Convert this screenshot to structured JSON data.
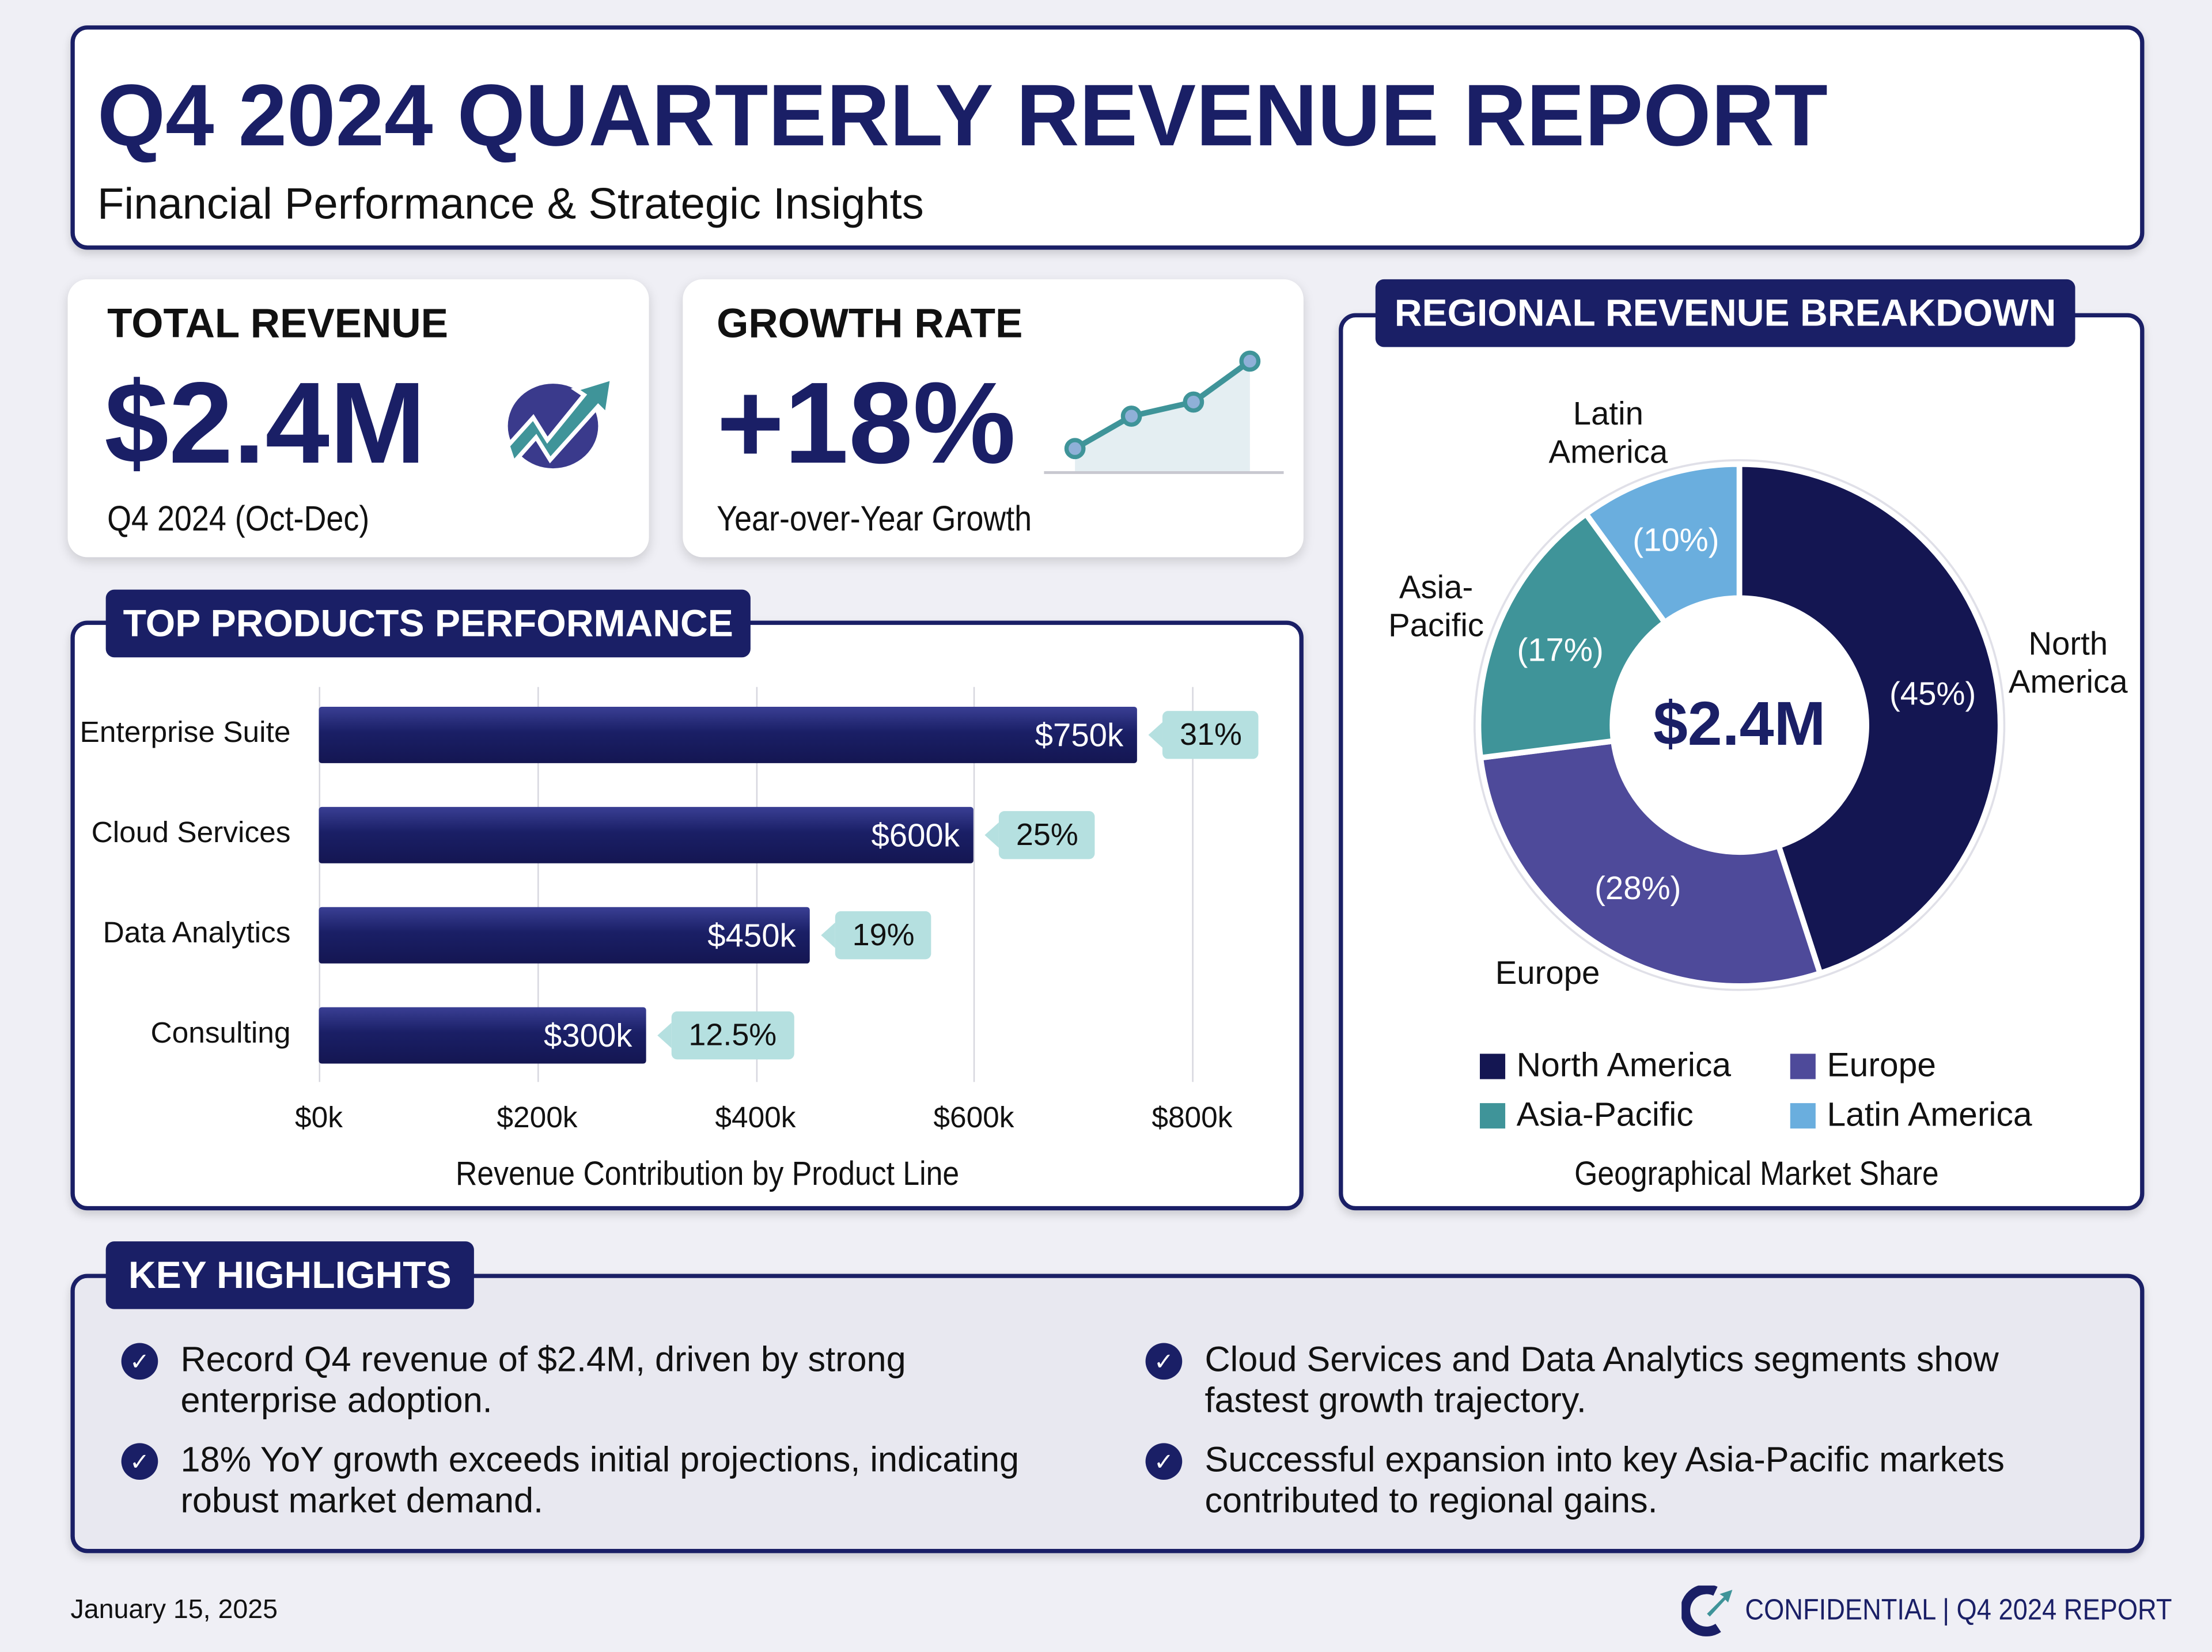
{
  "header": {
    "title": "Q4 2024 QUARTERLY REVENUE REPORT",
    "subtitle": "Financial Performance & Strategic Insights"
  },
  "kpis": [
    {
      "label": "TOTAL REVENUE",
      "value": "$2.4M",
      "caption": "Q4 2024 (Oct-Dec)",
      "icon": "growth-arrow-icon"
    },
    {
      "label": "GROWTH RATE",
      "value": "+18%",
      "caption": "Year-over-Year Growth",
      "icon": "sparkline-chart-icon"
    }
  ],
  "colors": {
    "navy": "#1a1f66",
    "north_america": "#141652",
    "europe": "#4e4a9a",
    "asia_pacific": "#3f9499",
    "latin_america": "#6aaede",
    "pct_tag": "#b5e0e0"
  },
  "chart_data": [
    {
      "type": "bar",
      "title": "TOP PRODUCTS PERFORMANCE",
      "orientation": "horizontal",
      "categories": [
        "Enterprise Suite",
        "Cloud Services",
        "Data Analytics",
        "Consulting"
      ],
      "values": [
        750,
        600,
        450,
        300
      ],
      "value_labels": [
        "$750k",
        "$600k",
        "$450k",
        "$300k"
      ],
      "share_labels": [
        "31%",
        "25%",
        "19%",
        "12.5%"
      ],
      "xlabel": "Revenue Contribution by Product Line",
      "xlim": [
        0,
        800
      ],
      "xticks": [
        "$0k",
        "$200k",
        "$400k",
        "$600k",
        "$800k"
      ],
      "grid": true
    },
    {
      "type": "pie",
      "donut": true,
      "title": "REGIONAL REVENUE BREAKDOWN",
      "center_label": "$2.4M",
      "categories": [
        "North America",
        "Europe",
        "Asia-Pacific",
        "Latin America"
      ],
      "values": [
        45,
        28,
        17,
        10
      ],
      "slice_labels": [
        "(45%)",
        "(28%)",
        "(17%)",
        "(10%)"
      ],
      "outer_labels": [
        "North\nAmerica",
        "Europe",
        "Asia-\nPacific",
        "Latin\nAmerica"
      ],
      "caption": "Geographical Market Share",
      "legend": "bottom"
    }
  ],
  "highlights": {
    "title": "KEY HIGHLIGHTS",
    "items": [
      "Record Q4 revenue of $2.4M, driven by strong enterprise adoption.",
      "18% YoY growth exceeds initial projections, indicating robust market demand.",
      "Cloud Services and Data Analytics segments show fastest growth trajectory.",
      "Successful expansion into key Asia-Pacific markets contributed to regional gains."
    ]
  },
  "footer": {
    "date": "January 15, 2025",
    "confidential": "CONFIDENTIAL | Q4 2024 REPORT"
  }
}
